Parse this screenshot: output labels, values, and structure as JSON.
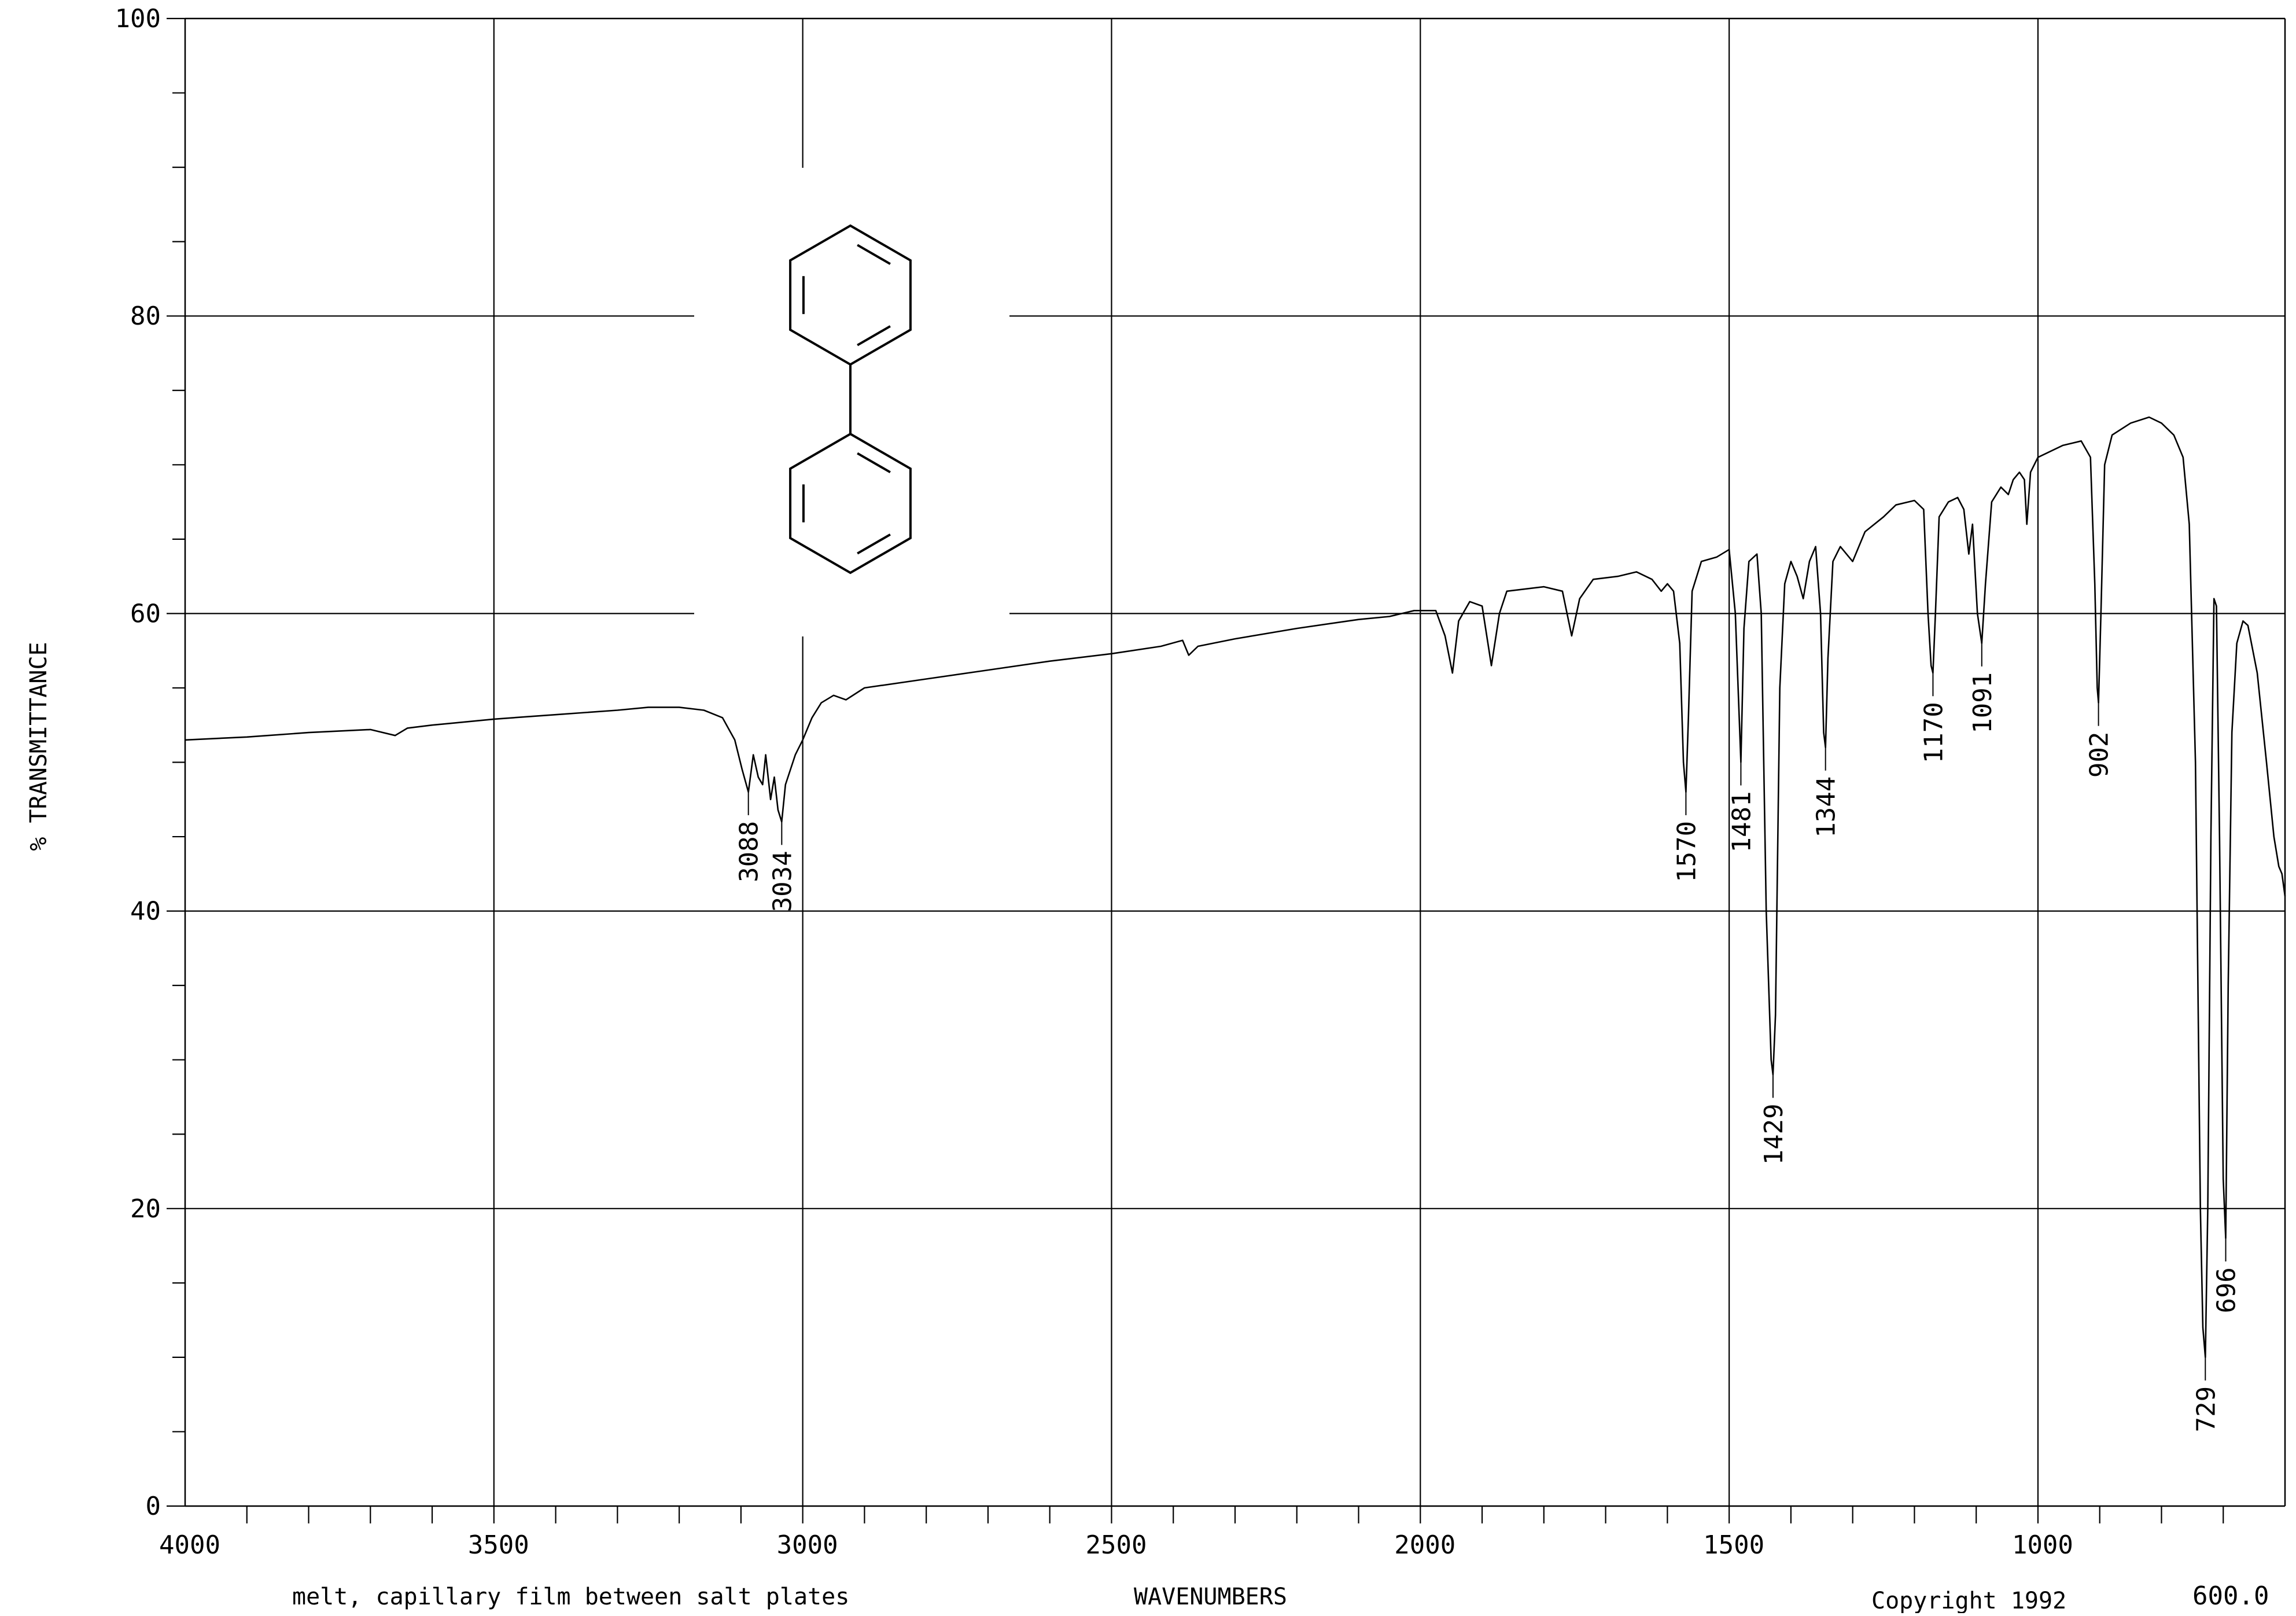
{
  "chart_data": {
    "type": "line",
    "title": "",
    "ylabel": "% TRANSMITTANCE",
    "xlabel": "WAVENUMBERS",
    "note": "melt, capillary film between salt plates",
    "copyright": "Copyright 1992",
    "xlim": [
      4000,
      600
    ],
    "ylim": [
      0,
      100
    ],
    "x_end_label": "600.0",
    "x_ticks": [
      {
        "value": 4000,
        "label": "4000"
      },
      {
        "value": 3500,
        "label": "3500"
      },
      {
        "value": 3000,
        "label": "3000"
      },
      {
        "value": 2500,
        "label": "2500"
      },
      {
        "value": 2000,
        "label": "2000"
      },
      {
        "value": 1500,
        "label": "1500"
      },
      {
        "value": 1000,
        "label": "1000"
      }
    ],
    "y_ticks": [
      {
        "value": 0,
        "label": "0"
      },
      {
        "value": 20,
        "label": "20"
      },
      {
        "value": 40,
        "label": "40"
      },
      {
        "value": 60,
        "label": "60"
      },
      {
        "value": 80,
        "label": "80"
      },
      {
        "value": 100,
        "label": "100"
      }
    ],
    "grid": true,
    "structure": "biphenyl",
    "peaks": [
      {
        "wavenumber": 3088,
        "transmittance": 48,
        "label": "3088"
      },
      {
        "wavenumber": 3034,
        "transmittance": 46,
        "label": "3034"
      },
      {
        "wavenumber": 1570,
        "transmittance": 48,
        "label": "1570"
      },
      {
        "wavenumber": 1481,
        "transmittance": 50,
        "label": "1481"
      },
      {
        "wavenumber": 1429,
        "transmittance": 29,
        "label": "1429"
      },
      {
        "wavenumber": 1344,
        "transmittance": 51,
        "label": "1344"
      },
      {
        "wavenumber": 1170,
        "transmittance": 56,
        "label": "1170"
      },
      {
        "wavenumber": 1091,
        "transmittance": 58,
        "label": "1091"
      },
      {
        "wavenumber": 902,
        "transmittance": 54,
        "label": "902"
      },
      {
        "wavenumber": 729,
        "transmittance": 10,
        "label": "729"
      },
      {
        "wavenumber": 696,
        "transmittance": 18,
        "label": "696"
      }
    ],
    "series": [
      {
        "points": [
          [
            4000,
            51.5
          ],
          [
            3900,
            51.7
          ],
          [
            3800,
            52.0
          ],
          [
            3700,
            52.2
          ],
          [
            3660,
            51.8
          ],
          [
            3640,
            52.3
          ],
          [
            3600,
            52.5
          ],
          [
            3500,
            52.9
          ],
          [
            3400,
            53.2
          ],
          [
            3300,
            53.5
          ],
          [
            3250,
            53.7
          ],
          [
            3200,
            53.7
          ],
          [
            3160,
            53.5
          ],
          [
            3130,
            53.0
          ],
          [
            3110,
            51.5
          ],
          [
            3098,
            49.5
          ],
          [
            3088,
            48.0
          ],
          [
            3080,
            50.5
          ],
          [
            3072,
            49.0
          ],
          [
            3065,
            48.5
          ],
          [
            3060,
            50.5
          ],
          [
            3052,
            47.5
          ],
          [
            3046,
            49.0
          ],
          [
            3040,
            46.8
          ],
          [
            3034,
            46.0
          ],
          [
            3028,
            48.5
          ],
          [
            3020,
            49.5
          ],
          [
            3012,
            50.5
          ],
          [
            3000,
            51.5
          ],
          [
            2985,
            53.0
          ],
          [
            2970,
            54.0
          ],
          [
            2950,
            54.5
          ],
          [
            2930,
            54.2
          ],
          [
            2900,
            55.0
          ],
          [
            2800,
            55.6
          ],
          [
            2700,
            56.2
          ],
          [
            2600,
            56.8
          ],
          [
            2500,
            57.3
          ],
          [
            2420,
            57.8
          ],
          [
            2385,
            58.2
          ],
          [
            2375,
            57.2
          ],
          [
            2360,
            57.8
          ],
          [
            2300,
            58.3
          ],
          [
            2200,
            59.0
          ],
          [
            2100,
            59.6
          ],
          [
            2050,
            59.8
          ],
          [
            2010,
            60.2
          ],
          [
            1975,
            60.2
          ],
          [
            1960,
            58.5
          ],
          [
            1948,
            56.0
          ],
          [
            1938,
            59.5
          ],
          [
            1920,
            60.8
          ],
          [
            1900,
            60.5
          ],
          [
            1885,
            56.5
          ],
          [
            1872,
            60.0
          ],
          [
            1860,
            61.5
          ],
          [
            1800,
            61.8
          ],
          [
            1770,
            61.5
          ],
          [
            1755,
            58.5
          ],
          [
            1742,
            61.0
          ],
          [
            1720,
            62.3
          ],
          [
            1680,
            62.5
          ],
          [
            1650,
            62.8
          ],
          [
            1625,
            62.3
          ],
          [
            1610,
            61.5
          ],
          [
            1600,
            62.0
          ],
          [
            1590,
            61.5
          ],
          [
            1580,
            58.0
          ],
          [
            1574,
            50.0
          ],
          [
            1570,
            48.0
          ],
          [
            1566,
            53.0
          ],
          [
            1560,
            61.5
          ],
          [
            1545,
            63.5
          ],
          [
            1520,
            63.8
          ],
          [
            1500,
            64.3
          ],
          [
            1490,
            60.0
          ],
          [
            1481,
            50.0
          ],
          [
            1476,
            59.0
          ],
          [
            1468,
            63.5
          ],
          [
            1455,
            64.0
          ],
          [
            1448,
            60.0
          ],
          [
            1440,
            40.0
          ],
          [
            1432,
            30.0
          ],
          [
            1429,
            29.0
          ],
          [
            1425,
            33.0
          ],
          [
            1418,
            55.0
          ],
          [
            1410,
            62.0
          ],
          [
            1400,
            63.5
          ],
          [
            1390,
            62.5
          ],
          [
            1380,
            61.0
          ],
          [
            1370,
            63.5
          ],
          [
            1360,
            64.5
          ],
          [
            1352,
            60.0
          ],
          [
            1347,
            52.0
          ],
          [
            1344,
            51.0
          ],
          [
            1340,
            57.0
          ],
          [
            1332,
            63.5
          ],
          [
            1320,
            64.5
          ],
          [
            1300,
            63.5
          ],
          [
            1280,
            65.5
          ],
          [
            1250,
            66.5
          ],
          [
            1230,
            67.3
          ],
          [
            1200,
            67.6
          ],
          [
            1185,
            67.0
          ],
          [
            1178,
            60.0
          ],
          [
            1173,
            56.5
          ],
          [
            1170,
            56.0
          ],
          [
            1166,
            60.0
          ],
          [
            1160,
            66.5
          ],
          [
            1145,
            67.5
          ],
          [
            1130,
            67.8
          ],
          [
            1120,
            67.0
          ],
          [
            1112,
            64.0
          ],
          [
            1106,
            66.0
          ],
          [
            1098,
            60.0
          ],
          [
            1091,
            58.0
          ],
          [
            1085,
            62.0
          ],
          [
            1075,
            67.5
          ],
          [
            1060,
            68.5
          ],
          [
            1048,
            68.0
          ],
          [
            1040,
            69.0
          ],
          [
            1030,
            69.5
          ],
          [
            1022,
            69.0
          ],
          [
            1018,
            66.0
          ],
          [
            1012,
            69.5
          ],
          [
            1000,
            70.5
          ],
          [
            960,
            71.3
          ],
          [
            930,
            71.6
          ],
          [
            915,
            70.5
          ],
          [
            908,
            62.0
          ],
          [
            904,
            55.0
          ],
          [
            902,
            54.0
          ],
          [
            898,
            60.0
          ],
          [
            892,
            70.0
          ],
          [
            880,
            72.0
          ],
          [
            850,
            72.8
          ],
          [
            820,
            73.2
          ],
          [
            800,
            72.8
          ],
          [
            780,
            72.0
          ],
          [
            765,
            70.5
          ],
          [
            755,
            66.0
          ],
          [
            745,
            50.0
          ],
          [
            737,
            20.0
          ],
          [
            733,
            12.0
          ],
          [
            729,
            10.0
          ],
          [
            725,
            20.0
          ],
          [
            720,
            45.0
          ],
          [
            715,
            61.0
          ],
          [
            711,
            60.5
          ],
          [
            706,
            45.0
          ],
          [
            700,
            22.0
          ],
          [
            696,
            18.0
          ],
          [
            692,
            35.0
          ],
          [
            686,
            52.0
          ],
          [
            678,
            58.0
          ],
          [
            668,
            59.5
          ],
          [
            660,
            59.2
          ],
          [
            645,
            56.0
          ],
          [
            630,
            50.0
          ],
          [
            618,
            45.0
          ],
          [
            610,
            43.0
          ],
          [
            605,
            42.5
          ],
          [
            600,
            41.0
          ]
        ]
      }
    ]
  }
}
